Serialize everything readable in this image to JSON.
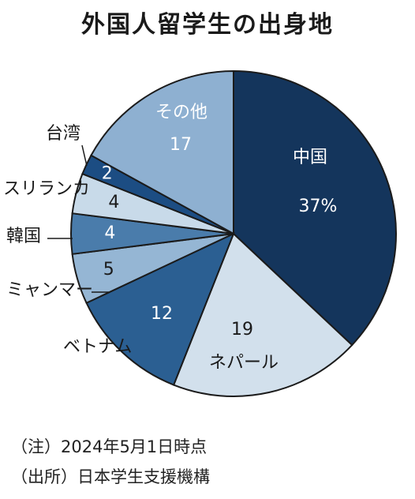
{
  "chart_data": {
    "type": "pie",
    "title": "外国人留学生の出身地",
    "unit": "%",
    "slices": [
      {
        "label": "中国",
        "value": 37,
        "value_label": "37%",
        "color": "#14355c"
      },
      {
        "label": "ネパール",
        "value": 19,
        "value_label": "19",
        "color": "#d2e0ec"
      },
      {
        "label": "ベトナム",
        "value": 12,
        "value_label": "12",
        "color": "#2b5f92"
      },
      {
        "label": "ミャンマー",
        "value": 5,
        "value_label": "5",
        "color": "#95b6d4"
      },
      {
        "label": "韓国",
        "value": 4,
        "value_label": "4",
        "color": "#4a7cab"
      },
      {
        "label": "スリランカ",
        "value": 4,
        "value_label": "4",
        "color": "#c8dae9"
      },
      {
        "label": "台湾",
        "value": 2,
        "value_label": "2",
        "color": "#1c4d83"
      },
      {
        "label": "その他",
        "value": 17,
        "value_label": "17",
        "color": "#8eb0d1"
      }
    ]
  },
  "notes": {
    "as_of": "（注）2024年5月1日時点",
    "source": "（出所）日本学生支援機構"
  }
}
